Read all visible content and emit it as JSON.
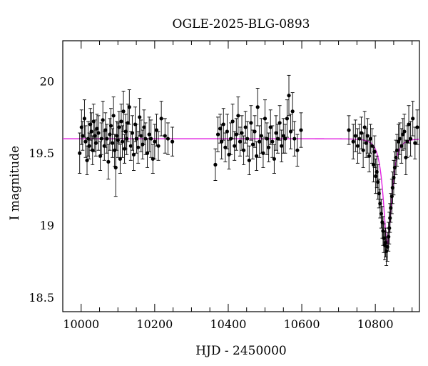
{
  "chart_data": {
    "type": "scatter",
    "title": "OGLE-2025-BLG-0893",
    "xlabel": "HJD - 2450000",
    "ylabel": "I magnitude",
    "xlim": [
      9950,
      10920
    ],
    "ylim": [
      20.28,
      18.4
    ],
    "x_inverted": false,
    "y_inverted": true,
    "x_ticks": [
      10000,
      10200,
      10400,
      10600,
      10800
    ],
    "y_ticks": [
      18.5,
      19,
      19.5,
      20
    ],
    "y_tick_labels": [
      "18.5",
      "19",
      "19.5",
      "20"
    ],
    "x_tick_labels": [
      "10000",
      "10200",
      "10400",
      "10600",
      "10800"
    ],
    "grid": false,
    "legend": "none",
    "colors": {
      "points": "#000000",
      "model": "#e020e0",
      "frame": "#000000"
    },
    "model": {
      "name": "",
      "baseline_mag": 19.6,
      "t0": 10833,
      "peak_mag": 18.87,
      "tE": 18
    },
    "series": [
      {
        "name": "",
        "points": [
          [
            9996,
            19.5,
            0.14
          ],
          [
            10001,
            19.68,
            0.12
          ],
          [
            10004,
            19.62,
            0.1
          ],
          [
            10009,
            19.74,
            0.13
          ],
          [
            10012,
            19.58,
            0.11
          ],
          [
            10016,
            19.45,
            0.1
          ],
          [
            10019,
            19.6,
            0.12
          ],
          [
            10022,
            19.55,
            0.09
          ],
          [
            10025,
            19.7,
            0.11
          ],
          [
            10028,
            19.65,
            0.13
          ],
          [
            10031,
            19.52,
            0.1
          ],
          [
            10034,
            19.72,
            0.12
          ],
          [
            10037,
            19.62,
            0.11
          ],
          [
            10040,
            19.57,
            0.09
          ],
          [
            10043,
            19.67,
            0.1
          ],
          [
            10047,
            19.64,
            0.12
          ],
          [
            10052,
            19.48,
            0.1
          ],
          [
            10055,
            19.6,
            0.11
          ],
          [
            10059,
            19.73,
            0.13
          ],
          [
            10063,
            19.55,
            0.1
          ],
          [
            10066,
            19.66,
            0.12
          ],
          [
            10070,
            19.6,
            0.1
          ],
          [
            10074,
            19.44,
            0.12
          ],
          [
            10078,
            19.63,
            0.11
          ],
          [
            10081,
            19.69,
            0.12
          ],
          [
            10085,
            19.57,
            0.1
          ],
          [
            10088,
            19.76,
            0.13
          ],
          [
            10091,
            19.52,
            0.11
          ],
          [
            10094,
            19.4,
            0.2
          ],
          [
            10097,
            19.62,
            0.1
          ],
          [
            10100,
            19.59,
            0.12
          ],
          [
            10103,
            19.68,
            0.11
          ],
          [
            10106,
            19.46,
            0.1
          ],
          [
            10109,
            19.72,
            0.12
          ],
          [
            10112,
            19.58,
            0.11
          ],
          [
            10115,
            19.79,
            0.14
          ],
          [
            10118,
            19.53,
            0.1
          ],
          [
            10121,
            19.65,
            0.12
          ],
          [
            10124,
            19.6,
            0.11
          ],
          [
            10127,
            19.71,
            0.13
          ],
          [
            10131,
            19.82,
            0.12
          ],
          [
            10135,
            19.55,
            0.1
          ],
          [
            10139,
            19.64,
            0.12
          ],
          [
            10143,
            19.49,
            0.11
          ],
          [
            10147,
            19.7,
            0.12
          ],
          [
            10151,
            19.6,
            0.1
          ],
          [
            10155,
            19.54,
            0.11
          ],
          [
            10159,
            19.75,
            0.13
          ],
          [
            10163,
            19.62,
            0.11
          ],
          [
            10167,
            19.56,
            0.1
          ],
          [
            10171,
            19.68,
            0.12
          ],
          [
            10175,
            19.6,
            0.11
          ],
          [
            10180,
            19.5,
            0.1
          ],
          [
            10185,
            19.63,
            0.12
          ],
          [
            10190,
            19.6,
            0.13
          ],
          [
            10195,
            19.46,
            0.1
          ],
          [
            10200,
            19.58,
            0.12
          ],
          [
            10205,
            19.66,
            0.11
          ],
          [
            10210,
            19.55,
            0.1
          ],
          [
            10218,
            19.74,
            0.12
          ],
          [
            10228,
            19.62,
            0.12
          ],
          [
            10236,
            19.6,
            0.11
          ],
          [
            10248,
            19.58,
            0.1
          ],
          [
            10365,
            19.42,
            0.11
          ],
          [
            10372,
            19.63,
            0.12
          ],
          [
            10378,
            19.67,
            0.1
          ],
          [
            10382,
            19.58,
            0.12
          ],
          [
            10387,
            19.7,
            0.11
          ],
          [
            10392,
            19.54,
            0.1
          ],
          [
            10397,
            19.65,
            0.12
          ],
          [
            10402,
            19.49,
            0.1
          ],
          [
            10407,
            19.6,
            0.11
          ],
          [
            10412,
            19.72,
            0.12
          ],
          [
            10417,
            19.55,
            0.1
          ],
          [
            10422,
            19.63,
            0.11
          ],
          [
            10427,
            19.76,
            0.13
          ],
          [
            10432,
            19.58,
            0.1
          ],
          [
            10437,
            19.64,
            0.12
          ],
          [
            10442,
            19.52,
            0.1
          ],
          [
            10447,
            19.68,
            0.11
          ],
          [
            10452,
            19.6,
            0.12
          ],
          [
            10457,
            19.45,
            0.1
          ],
          [
            10462,
            19.71,
            0.12
          ],
          [
            10467,
            19.56,
            0.1
          ],
          [
            10472,
            19.65,
            0.11
          ],
          [
            10477,
            19.48,
            0.1
          ],
          [
            10480,
            19.82,
            0.13
          ],
          [
            10485,
            19.58,
            0.11
          ],
          [
            10490,
            19.62,
            0.12
          ],
          [
            10495,
            19.5,
            0.1
          ],
          [
            10500,
            19.74,
            0.13
          ],
          [
            10505,
            19.6,
            0.11
          ],
          [
            10510,
            19.54,
            0.1
          ],
          [
            10515,
            19.68,
            0.12
          ],
          [
            10520,
            19.58,
            0.11
          ],
          [
            10525,
            19.46,
            0.1
          ],
          [
            10530,
            19.64,
            0.12
          ],
          [
            10535,
            19.6,
            0.1
          ],
          [
            10540,
            19.71,
            0.12
          ],
          [
            10545,
            19.55,
            0.11
          ],
          [
            10550,
            19.62,
            0.12
          ],
          [
            10555,
            19.6,
            0.1
          ],
          [
            10560,
            19.74,
            0.13
          ],
          [
            10565,
            19.9,
            0.14
          ],
          [
            10570,
            19.65,
            0.12
          ],
          [
            10575,
            19.79,
            0.13
          ],
          [
            10580,
            19.6,
            0.12
          ],
          [
            10588,
            19.52,
            0.11
          ],
          [
            10598,
            19.66,
            0.12
          ],
          [
            10728,
            19.66,
            0.1
          ],
          [
            10740,
            19.58,
            0.12
          ],
          [
            10746,
            19.62,
            0.11
          ],
          [
            10752,
            19.55,
            0.12
          ],
          [
            10757,
            19.6,
            0.1
          ],
          [
            10762,
            19.64,
            0.11
          ],
          [
            10767,
            19.52,
            0.12
          ],
          [
            10771,
            19.68,
            0.11
          ],
          [
            10775,
            19.57,
            0.1
          ],
          [
            10779,
            19.62,
            0.12
          ],
          [
            10783,
            19.48,
            0.11
          ],
          [
            10787,
            19.6,
            0.1
          ],
          [
            10791,
            19.55,
            0.12
          ],
          [
            10795,
            19.42,
            0.12
          ],
          [
            10798,
            19.51,
            0.11
          ],
          [
            10801,
            19.34,
            0.12
          ],
          [
            10804,
            19.37,
            0.11
          ],
          [
            10807,
            19.3,
            0.12
          ],
          [
            10810,
            19.22,
            0.1
          ],
          [
            10813,
            19.15,
            0.1
          ],
          [
            10816,
            19.08,
            0.1
          ],
          [
            10819,
            19.02,
            0.11
          ],
          [
            10821,
            18.96,
            0.1
          ],
          [
            10823,
            18.91,
            0.1
          ],
          [
            10826,
            18.86,
            0.1
          ],
          [
            10828,
            18.88,
            0.1
          ],
          [
            10830,
            18.82,
            0.1
          ],
          [
            10833,
            18.85,
            0.1
          ],
          [
            10836,
            18.92,
            0.1
          ],
          [
            10838,
            18.98,
            0.11
          ],
          [
            10840,
            19.05,
            0.1
          ],
          [
            10842,
            19.12,
            0.1
          ],
          [
            10845,
            19.2,
            0.12
          ],
          [
            10847,
            19.26,
            0.11
          ],
          [
            10850,
            19.33,
            0.12
          ],
          [
            10853,
            19.4,
            0.11
          ],
          [
            10856,
            19.47,
            0.12
          ],
          [
            10859,
            19.52,
            0.11
          ],
          [
            10863,
            19.58,
            0.12
          ],
          [
            10867,
            19.6,
            0.11
          ],
          [
            10871,
            19.55,
            0.12
          ],
          [
            10875,
            19.63,
            0.11
          ],
          [
            10879,
            19.65,
            0.12
          ],
          [
            10883,
            19.47,
            0.12
          ],
          [
            10887,
            19.58,
            0.11
          ],
          [
            10891,
            19.7,
            0.13
          ],
          [
            10896,
            19.6,
            0.12
          ],
          [
            10902,
            19.74,
            0.12
          ],
          [
            10908,
            19.57,
            0.11
          ],
          [
            10914,
            19.68,
            0.12
          ]
        ]
      }
    ]
  }
}
